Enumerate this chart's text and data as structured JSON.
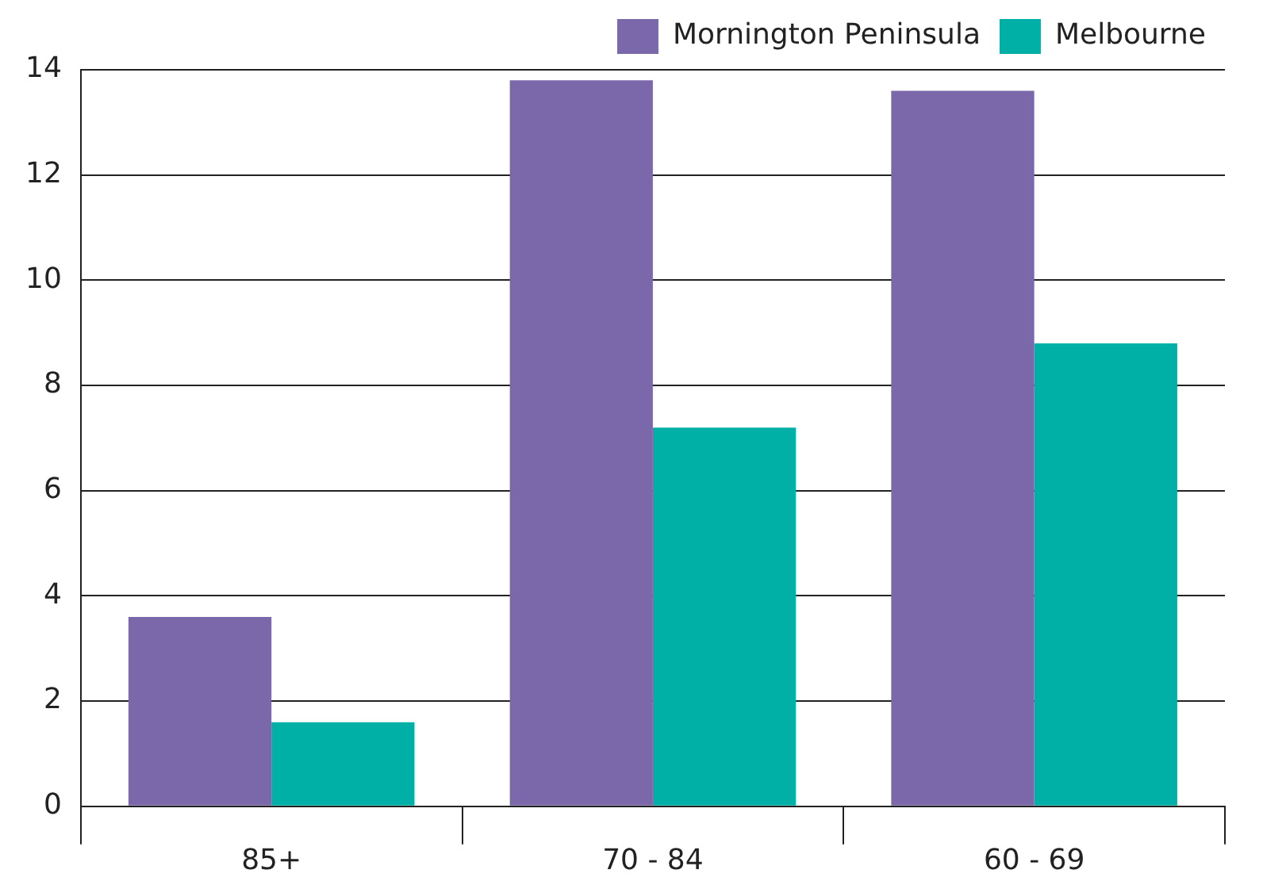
{
  "chart_data": {
    "type": "bar",
    "categories": [
      "85+",
      "70 - 84",
      "60 - 69"
    ],
    "series": [
      {
        "name": "Mornington Peninsula",
        "color": "#7b68aa",
        "values": [
          3.6,
          13.8,
          13.6
        ]
      },
      {
        "name": "Melbourne",
        "color": "#00b0a6",
        "values": [
          1.6,
          7.2,
          8.8
        ]
      }
    ],
    "ylim": [
      0,
      14
    ],
    "yticks": [
      0,
      2,
      4,
      6,
      8,
      10,
      12,
      14
    ],
    "grid": "y",
    "legend": "top right"
  }
}
